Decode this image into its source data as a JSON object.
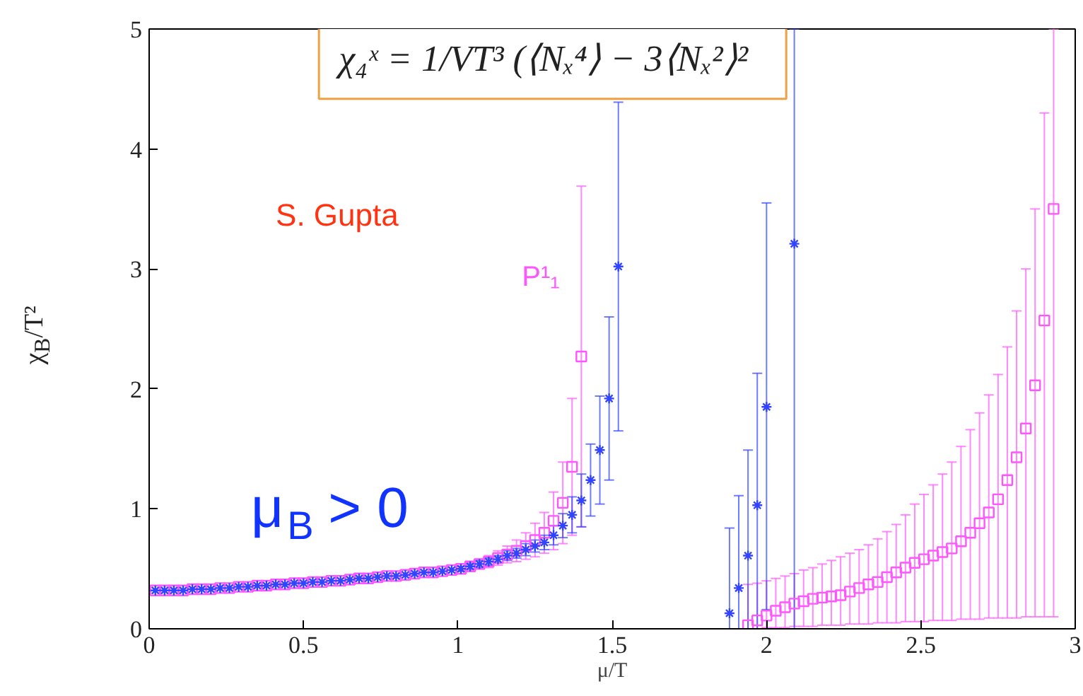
{
  "chart_data": {
    "type": "scatter",
    "xlabel": "μ/T",
    "ylabel": "χ$_{B}$/T²",
    "xlim": [
      0,
      3
    ],
    "ylim": [
      0,
      5
    ],
    "xticks": [
      0,
      0.5,
      1,
      1.5,
      2,
      2.5,
      3
    ],
    "yticks": [
      0,
      1,
      2,
      3,
      4,
      5
    ],
    "grid": false,
    "series": [
      {
        "name": "P¹₁",
        "color": "#ff55ff",
        "marker": "square",
        "x": [
          0.02,
          0.05,
          0.08,
          0.11,
          0.14,
          0.17,
          0.2,
          0.23,
          0.26,
          0.29,
          0.32,
          0.35,
          0.38,
          0.41,
          0.44,
          0.47,
          0.5,
          0.53,
          0.56,
          0.59,
          0.62,
          0.65,
          0.68,
          0.71,
          0.74,
          0.77,
          0.8,
          0.83,
          0.86,
          0.89,
          0.92,
          0.95,
          0.98,
          1.01,
          1.04,
          1.07,
          1.1,
          1.13,
          1.16,
          1.19,
          1.22,
          1.25,
          1.28,
          1.31,
          1.34,
          1.37,
          1.4,
          1.94,
          1.97,
          2.0,
          2.03,
          2.06,
          2.09,
          2.12,
          2.15,
          2.18,
          2.21,
          2.24,
          2.27,
          2.3,
          2.33,
          2.36,
          2.39,
          2.42,
          2.45,
          2.48,
          2.51,
          2.54,
          2.57,
          2.6,
          2.63,
          2.66,
          2.69,
          2.72,
          2.75,
          2.78,
          2.81,
          2.84,
          2.87,
          2.9,
          2.93
        ],
        "values": [
          0.32,
          0.32,
          0.32,
          0.32,
          0.33,
          0.33,
          0.33,
          0.34,
          0.34,
          0.35,
          0.35,
          0.36,
          0.36,
          0.37,
          0.37,
          0.38,
          0.38,
          0.39,
          0.39,
          0.4,
          0.4,
          0.41,
          0.42,
          0.42,
          0.43,
          0.44,
          0.44,
          0.45,
          0.46,
          0.47,
          0.47,
          0.48,
          0.49,
          0.5,
          0.52,
          0.54,
          0.56,
          0.59,
          0.62,
          0.65,
          0.69,
          0.74,
          0.8,
          0.9,
          1.05,
          1.35,
          2.27,
          0.03,
          0.07,
          0.11,
          0.15,
          0.18,
          0.21,
          0.23,
          0.25,
          0.26,
          0.27,
          0.28,
          0.31,
          0.34,
          0.37,
          0.39,
          0.43,
          0.47,
          0.51,
          0.55,
          0.58,
          0.61,
          0.64,
          0.67,
          0.73,
          0.8,
          0.88,
          0.97,
          1.08,
          1.24,
          1.43,
          1.67,
          2.03,
          2.57,
          3.5
        ],
        "errors": [
          null,
          null,
          null,
          null,
          null,
          null,
          null,
          null,
          null,
          null,
          null,
          null,
          null,
          null,
          null,
          null,
          null,
          null,
          null,
          null,
          null,
          null,
          null,
          null,
          null,
          null,
          null,
          null,
          null,
          null,
          null,
          null,
          null,
          0.02,
          0.03,
          0.04,
          0.05,
          0.06,
          0.07,
          0.09,
          0.11,
          0.14,
          0.17,
          0.24,
          0.34,
          0.57,
          1.42,
          [
            0.0,
            0.37
          ],
          [
            0.0,
            0.38
          ],
          [
            0.01,
            0.4
          ],
          [
            0.01,
            0.42
          ],
          [
            0.01,
            0.44
          ],
          [
            0.02,
            0.46
          ],
          [
            0.02,
            0.49
          ],
          [
            0.02,
            0.51
          ],
          [
            0.03,
            0.54
          ],
          [
            0.03,
            0.57
          ],
          [
            0.03,
            0.6
          ],
          [
            0.04,
            0.63
          ],
          [
            0.04,
            0.66
          ],
          [
            0.04,
            0.7
          ],
          [
            0.05,
            0.75
          ],
          [
            0.05,
            0.81
          ],
          [
            0.05,
            0.87
          ],
          [
            0.06,
            0.95
          ],
          [
            0.06,
            1.04
          ],
          [
            0.06,
            1.12
          ],
          [
            0.07,
            1.2
          ],
          [
            0.07,
            1.29
          ],
          [
            0.07,
            1.39
          ],
          [
            0.08,
            1.52
          ],
          [
            0.08,
            1.66
          ],
          [
            0.08,
            1.8
          ],
          [
            0.09,
            1.95
          ],
          [
            0.09,
            2.12
          ],
          [
            0.09,
            2.35
          ],
          [
            0.09,
            2.65
          ],
          [
            0.1,
            3.0
          ],
          [
            0.1,
            3.5
          ],
          [
            0.1,
            4.3
          ],
          [
            0.1,
            5
          ]
        ]
      },
      {
        "color": "#3344ff",
        "marker": "cross",
        "x": [
          0.02,
          0.05,
          0.08,
          0.11,
          0.14,
          0.17,
          0.2,
          0.23,
          0.26,
          0.29,
          0.32,
          0.35,
          0.38,
          0.41,
          0.44,
          0.47,
          0.5,
          0.53,
          0.56,
          0.59,
          0.62,
          0.65,
          0.68,
          0.71,
          0.74,
          0.77,
          0.8,
          0.83,
          0.86,
          0.89,
          0.92,
          0.95,
          0.98,
          1.01,
          1.04,
          1.07,
          1.1,
          1.13,
          1.16,
          1.19,
          1.22,
          1.25,
          1.28,
          1.31,
          1.34,
          1.37,
          1.4,
          1.43,
          1.46,
          1.49,
          1.52,
          1.88,
          1.91,
          1.94,
          1.97,
          2.0,
          2.09
        ],
        "values": [
          0.32,
          0.32,
          0.32,
          0.32,
          0.33,
          0.33,
          0.33,
          0.34,
          0.34,
          0.35,
          0.35,
          0.36,
          0.36,
          0.37,
          0.37,
          0.38,
          0.38,
          0.39,
          0.39,
          0.4,
          0.4,
          0.41,
          0.42,
          0.42,
          0.43,
          0.44,
          0.44,
          0.45,
          0.46,
          0.47,
          0.47,
          0.48,
          0.49,
          0.5,
          0.52,
          0.54,
          0.56,
          0.58,
          0.61,
          0.63,
          0.66,
          0.69,
          0.72,
          0.78,
          0.86,
          0.95,
          1.07,
          1.24,
          1.49,
          1.92,
          3.02,
          0.13,
          0.34,
          0.61,
          1.03,
          1.85,
          3.21
        ],
        "errors": [
          null,
          null,
          null,
          null,
          null,
          null,
          null,
          null,
          null,
          null,
          null,
          null,
          null,
          null,
          null,
          null,
          null,
          null,
          null,
          null,
          null,
          null,
          null,
          null,
          null,
          null,
          null,
          null,
          null,
          null,
          null,
          null,
          null,
          0.02,
          0.02,
          0.03,
          0.03,
          0.03,
          0.04,
          0.04,
          0.05,
          0.05,
          0.06,
          0.08,
          0.1,
          0.15,
          0.22,
          0.3,
          0.45,
          0.68,
          [
            1.65,
            4.39
          ],
          [
            0,
            0.84
          ],
          [
            0,
            1.11
          ],
          [
            0,
            1.49
          ],
          [
            0,
            2.13
          ],
          [
            0.16,
            3.55
          ],
          [
            0,
            5
          ]
        ]
      }
    ],
    "annotations": [
      "χ₄ˣ  =  1/VT³ (⟨Nₓ⁴⟩ − 3⟨Nₓ²⟩²",
      "S. Gupta",
      "μ$_{B}$ > 0"
    ]
  }
}
